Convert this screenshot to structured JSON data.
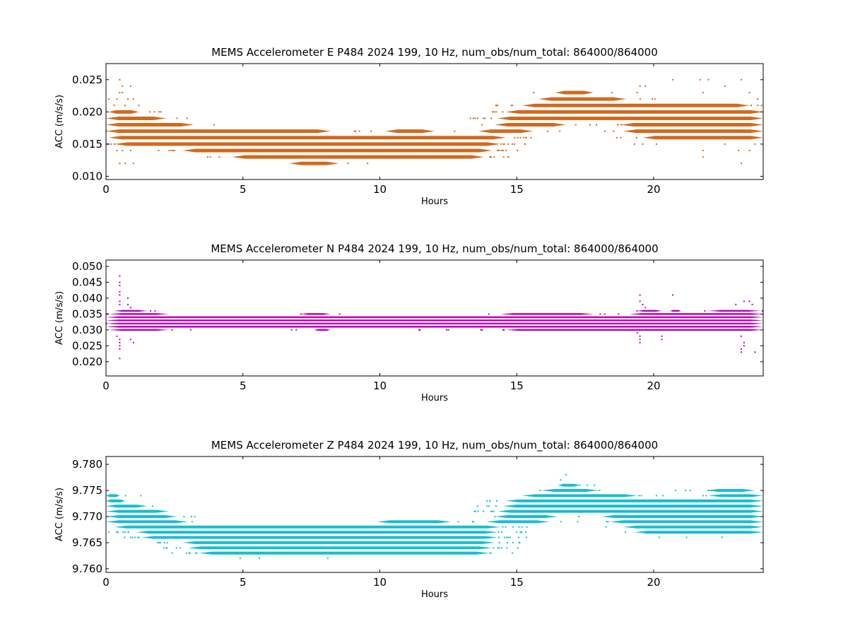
{
  "chart_data": [
    {
      "type": "scatter",
      "title": "MEMS Accelerometer E P484 2024 199, 10 Hz, num_obs/num_total: 864000/864000",
      "xlabel": "Hours",
      "ylabel": "ACC (m/s/s)",
      "xlim": [
        0,
        24
      ],
      "ylim": [
        0.0095,
        0.0275
      ],
      "xticks": [
        0,
        5,
        10,
        15,
        20
      ],
      "yticks": [
        0.01,
        0.015,
        0.02,
        0.025
      ],
      "ytick_labels": [
        "0.010",
        "0.015",
        "0.020",
        "0.025"
      ],
      "color": "#d2691e",
      "grid": false,
      "quantization_step": 0.001,
      "bands": [
        {
          "y": 0.012,
          "x": [
            [
              6.7,
              8.5
            ]
          ]
        },
        {
          "y": 0.013,
          "x": [
            [
              4.6,
              13.8
            ]
          ]
        },
        {
          "y": 0.014,
          "x": [
            [
              2.8,
              14.1
            ]
          ]
        },
        {
          "y": 0.015,
          "x": [
            [
              0.3,
              14.4
            ]
          ]
        },
        {
          "y": 0.016,
          "x": [
            [
              0.1,
              14.6
            ],
            [
              19.6,
              24.0
            ]
          ]
        },
        {
          "y": 0.017,
          "x": [
            [
              0.0,
              8.2
            ],
            [
              10.2,
              12.0
            ],
            [
              13.6,
              15.6
            ],
            [
              18.9,
              24.0
            ]
          ]
        },
        {
          "y": 0.018,
          "x": [
            [
              0.0,
              3.2
            ],
            [
              14.2,
              16.8
            ],
            [
              18.8,
              24.0
            ]
          ]
        },
        {
          "y": 0.019,
          "x": [
            [
              0.0,
              2.2
            ],
            [
              14.3,
              24.0
            ]
          ]
        },
        {
          "y": 0.02,
          "x": [
            [
              0.1,
              1.2
            ],
            [
              14.6,
              24.0
            ]
          ]
        },
        {
          "y": 0.021,
          "x": [
            [
              15.2,
              23.5
            ]
          ]
        },
        {
          "y": 0.022,
          "x": [
            [
              15.8,
              19.0
            ]
          ]
        },
        {
          "y": 0.023,
          "x": [
            [
              16.4,
              17.8
            ]
          ]
        }
      ],
      "outliers": [
        [
          0.5,
          0.025
        ],
        [
          0.6,
          0.024
        ],
        [
          0.9,
          0.024
        ],
        [
          0.5,
          0.023
        ],
        [
          0.6,
          0.023
        ],
        [
          0.1,
          0.022
        ],
        [
          0.4,
          0.022
        ],
        [
          0.8,
          0.022
        ],
        [
          1.0,
          0.022
        ],
        [
          0.3,
          0.021
        ],
        [
          0.7,
          0.021
        ],
        [
          1.2,
          0.021
        ],
        [
          1.6,
          0.02
        ],
        [
          2.0,
          0.02
        ],
        [
          0.4,
          0.014
        ],
        [
          0.6,
          0.014
        ],
        [
          0.9,
          0.014
        ],
        [
          0.5,
          0.012
        ],
        [
          0.7,
          0.012
        ],
        [
          1.0,
          0.012
        ],
        [
          19.5,
          0.024
        ],
        [
          19.7,
          0.024
        ],
        [
          20.7,
          0.025
        ],
        [
          21.7,
          0.025
        ],
        [
          22.0,
          0.025
        ],
        [
          23.2,
          0.025
        ],
        [
          19.4,
          0.023
        ],
        [
          21.8,
          0.023
        ],
        [
          22.6,
          0.024
        ],
        [
          23.5,
          0.023
        ],
        [
          23.8,
          0.022
        ],
        [
          19.3,
          0.015
        ],
        [
          19.6,
          0.015
        ],
        [
          20.1,
          0.015
        ],
        [
          21.8,
          0.014
        ],
        [
          22.6,
          0.015
        ],
        [
          23.1,
          0.014
        ],
        [
          23.5,
          0.014
        ],
        [
          23.7,
          0.015
        ],
        [
          21.8,
          0.013
        ],
        [
          23.2,
          0.012
        ]
      ]
    },
    {
      "type": "scatter",
      "title": "MEMS Accelerometer N P484 2024 199, 10 Hz, num_obs/num_total: 864000/864000",
      "xlabel": "Hours",
      "ylabel": "ACC (m/s/s)",
      "xlim": [
        0,
        24
      ],
      "ylim": [
        0.0155,
        0.052
      ],
      "xticks": [
        0,
        5,
        10,
        15,
        20
      ],
      "yticks": [
        0.02,
        0.025,
        0.03,
        0.035,
        0.04,
        0.045,
        0.05
      ],
      "ytick_labels": [
        "0.020",
        "0.025",
        "0.030",
        "0.035",
        "0.040",
        "0.045",
        "0.050"
      ],
      "color": "#bf00bf",
      "grid": false,
      "quantization_step": 0.001,
      "bands": [
        {
          "y": 0.03,
          "x": [
            [
              0.1,
              2.3
            ],
            [
              7.6,
              8.2
            ],
            [
              11.4,
              11.5
            ],
            [
              14.6,
              24.0
            ]
          ]
        },
        {
          "y": 0.031,
          "x": [
            [
              0.0,
              24.0
            ]
          ]
        },
        {
          "y": 0.032,
          "x": [
            [
              0.0,
              24.0
            ]
          ]
        },
        {
          "y": 0.033,
          "x": [
            [
              0.0,
              24.0
            ]
          ]
        },
        {
          "y": 0.034,
          "x": [
            [
              0.0,
              24.0
            ]
          ]
        },
        {
          "y": 0.035,
          "x": [
            [
              0.1,
              2.3
            ],
            [
              7.1,
              8.2
            ],
            [
              14.4,
              17.8
            ],
            [
              19.1,
              24.0
            ]
          ]
        },
        {
          "y": 0.036,
          "x": [
            [
              0.3,
              1.5
            ],
            [
              19.4,
              20.3
            ],
            [
              20.6,
              21.0
            ],
            [
              22.0,
              23.9
            ]
          ]
        }
      ],
      "outliers": [
        [
          0.5,
          0.047
        ],
        [
          0.5,
          0.045
        ],
        [
          0.5,
          0.044
        ],
        [
          0.5,
          0.042
        ],
        [
          0.5,
          0.041
        ],
        [
          0.5,
          0.039
        ],
        [
          0.5,
          0.038
        ],
        [
          0.8,
          0.038
        ],
        [
          0.9,
          0.037
        ],
        [
          0.8,
          0.04
        ],
        [
          0.4,
          0.028
        ],
        [
          0.5,
          0.027
        ],
        [
          0.5,
          0.026
        ],
        [
          0.5,
          0.025
        ],
        [
          0.5,
          0.024
        ],
        [
          0.9,
          0.027
        ],
        [
          1.0,
          0.026
        ],
        [
          0.5,
          0.021
        ],
        [
          19.5,
          0.041
        ],
        [
          19.5,
          0.039
        ],
        [
          19.6,
          0.038
        ],
        [
          19.7,
          0.037
        ],
        [
          20.7,
          0.041
        ],
        [
          23.5,
          0.039
        ],
        [
          23.6,
          0.038
        ],
        [
          23.3,
          0.039
        ],
        [
          23.0,
          0.038
        ],
        [
          19.4,
          0.029
        ],
        [
          19.5,
          0.028
        ],
        [
          19.5,
          0.027
        ],
        [
          19.5,
          0.026
        ],
        [
          20.3,
          0.028
        ],
        [
          20.3,
          0.027
        ],
        [
          23.2,
          0.028
        ],
        [
          23.3,
          0.026
        ],
        [
          23.3,
          0.025
        ],
        [
          23.2,
          0.024
        ],
        [
          23.2,
          0.023
        ],
        [
          23.7,
          0.023
        ]
      ]
    },
    {
      "type": "scatter",
      "title": "MEMS Accelerometer Z P484 2024 199, 10 Hz, num_obs/num_total: 864000/864000",
      "xlabel": "Hours",
      "ylabel": "ACC (m/s/s)",
      "xlim": [
        0,
        24
      ],
      "ylim": [
        9.7593,
        9.7815
      ],
      "xticks": [
        0,
        5,
        10,
        15,
        20
      ],
      "yticks": [
        9.76,
        9.765,
        9.77,
        9.775,
        9.78
      ],
      "ytick_labels": [
        "9.760",
        "9.765",
        "9.770",
        "9.775",
        "9.780"
      ],
      "color": "#17becf",
      "grid": false,
      "quantization_step": 0.001,
      "bands": [
        {
          "y": 9.763,
          "x": [
            [
              3.4,
              14.0
            ]
          ]
        },
        {
          "y": 9.764,
          "x": [
            [
              3.0,
              14.1
            ]
          ]
        },
        {
          "y": 9.765,
          "x": [
            [
              2.8,
              14.2
            ]
          ]
        },
        {
          "y": 9.766,
          "x": [
            [
              1.3,
              14.3
            ]
          ]
        },
        {
          "y": 9.767,
          "x": [
            [
              1.1,
              14.3
            ],
            [
              19.3,
              24.0
            ]
          ]
        },
        {
          "y": 9.768,
          "x": [
            [
              0.3,
              14.4
            ],
            [
              18.9,
              24.0
            ]
          ]
        },
        {
          "y": 9.769,
          "x": [
            [
              0.0,
              3.0
            ],
            [
              9.9,
              12.6
            ],
            [
              13.9,
              16.2
            ],
            [
              18.4,
              24.0
            ]
          ]
        },
        {
          "y": 9.77,
          "x": [
            [
              0.0,
              2.6
            ],
            [
              14.2,
              16.5
            ],
            [
              18.1,
              24.0
            ]
          ]
        },
        {
          "y": 9.771,
          "x": [
            [
              0.0,
              2.3
            ],
            [
              14.3,
              24.0
            ]
          ]
        },
        {
          "y": 9.772,
          "x": [
            [
              0.0,
              1.5
            ],
            [
              14.5,
              24.0
            ]
          ]
        },
        {
          "y": 9.773,
          "x": [
            [
              0.0,
              0.7
            ],
            [
              14.6,
              24.0
            ]
          ]
        },
        {
          "y": 9.774,
          "x": [
            [
              0.0,
              0.5
            ],
            [
              15.2,
              19.4
            ],
            [
              22.0,
              24.0
            ]
          ]
        },
        {
          "y": 9.775,
          "x": [
            [
              15.9,
              18.0
            ],
            [
              21.9,
              23.7
            ]
          ]
        },
        {
          "y": 9.776,
          "x": [
            [
              16.5,
              17.3
            ]
          ]
        }
      ],
      "outliers": [
        [
          16.6,
          9.777
        ],
        [
          16.8,
          9.778
        ],
        [
          17.3,
          9.776
        ],
        [
          4.9,
          9.762
        ],
        [
          5.6,
          9.762
        ],
        [
          8.1,
          9.762
        ],
        [
          0.7,
          9.767
        ],
        [
          20.2,
          9.766
        ],
        [
          21.2,
          9.766
        ],
        [
          22.5,
          9.766
        ],
        [
          0.2,
          9.774
        ],
        [
          20.8,
          9.775
        ],
        [
          22.0,
          9.775
        ]
      ]
    }
  ]
}
